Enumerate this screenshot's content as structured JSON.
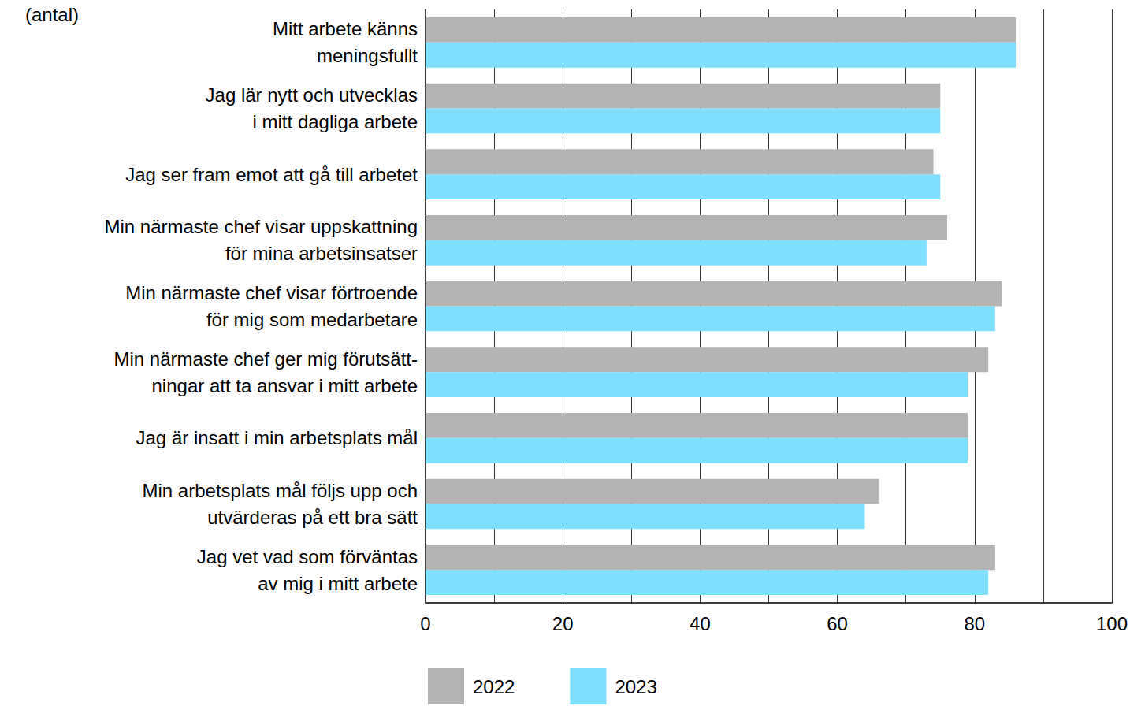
{
  "chart_data": {
    "type": "bar",
    "orientation": "horizontal",
    "xlabel": "(antal)",
    "categories": [
      "Mitt arbete känns\nmeningsfullt",
      "Jag lär nytt och utvecklas\ni mitt dagliga arbete",
      "Jag ser fram emot att gå till arbetet",
      "Min närmaste chef visar uppskattning\nför mina arbetsinsatser",
      "Min närmaste chef visar förtroende\nför mig som medarbetare",
      "Min närmaste chef ger mig förutsätt-\nningar att ta ansvar i mitt arbete",
      "Jag är insatt i min arbetsplats mål",
      "Min arbetsplats mål följs upp och\nutvärderas på ett bra sätt",
      "Jag vet vad som förväntas\nav mig i mitt arbete"
    ],
    "series": [
      {
        "name": "2022",
        "color": "#b3b3b3",
        "values": [
          86,
          75,
          74,
          76,
          84,
          82,
          79,
          66,
          83
        ]
      },
      {
        "name": "2023",
        "color": "#7fdfff",
        "values": [
          86,
          75,
          75,
          73,
          83,
          79,
          79,
          64,
          82
        ]
      }
    ],
    "xlim": [
      0,
      100
    ],
    "xticks": [
      0,
      20,
      40,
      60,
      80,
      100
    ],
    "grid": true,
    "legend": "bottom"
  }
}
